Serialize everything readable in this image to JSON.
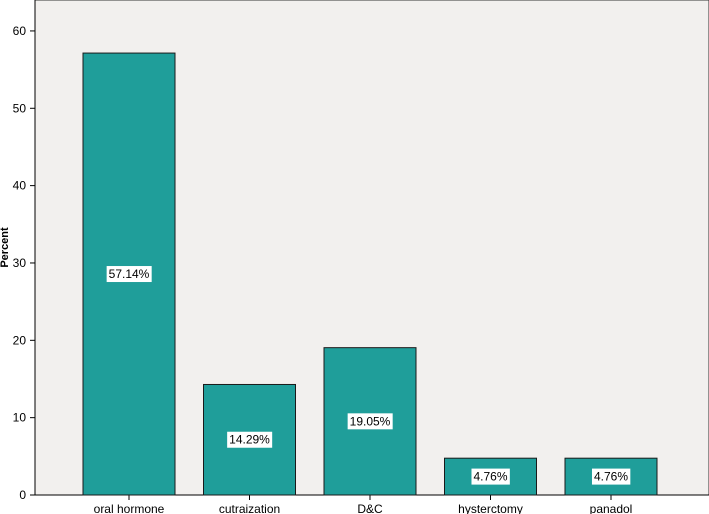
{
  "chart_data": {
    "type": "bar",
    "title": "",
    "xlabel": "",
    "ylabel": "Percent",
    "categories": [
      "oral hormone",
      "cutraization",
      "D&C",
      "hysterctomy",
      "panadol"
    ],
    "values": [
      57.14,
      14.29,
      19.05,
      4.76,
      4.76
    ],
    "data_labels": [
      "57.14%",
      "14.29%",
      "19.05%",
      "4.76%",
      "4.76%"
    ],
    "ylim": [
      0,
      64
    ],
    "yticks": [
      0,
      10,
      20,
      30,
      40,
      50,
      60
    ],
    "grid": false,
    "legend": "none",
    "colors": {
      "bar": "#1f9e9a",
      "bar_stroke": "#1a1a1a",
      "plot_bg": "#f2f0ee",
      "label_bg": "#ffffff"
    }
  }
}
